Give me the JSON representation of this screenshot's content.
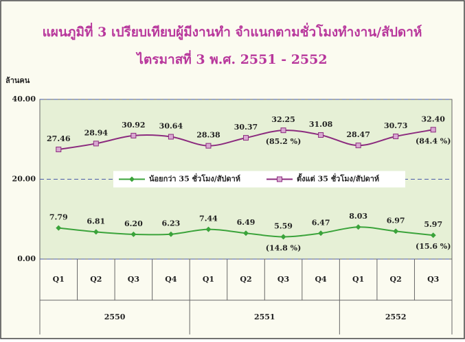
{
  "chart_data": {
    "type": "line",
    "title": "แผนภูมิที่ 3  เปรียบเทียบผู้มีงานทำ จำแนกตามชั่วโมงทำงาน/สัปดาห์",
    "subtitle": "ไตรมาสที่ 3  พ.ศ. 2551 - 2552",
    "y_label": "ล้านคน",
    "categories": [
      "Q1",
      "Q2",
      "Q3",
      "Q4",
      "Q1",
      "Q2",
      "Q3",
      "Q4",
      "Q1",
      "Q2",
      "Q3"
    ],
    "x_groups": [
      "2550",
      "2550",
      "2550",
      "2550",
      "2551",
      "2551",
      "2551",
      "2551",
      "2552",
      "2552",
      "2552"
    ],
    "ylim": [
      0,
      40
    ],
    "yticks": [
      {
        "value": 0,
        "label": "0.00"
      },
      {
        "value": 20,
        "label": "20.00"
      },
      {
        "value": 40,
        "label": "40.00"
      }
    ],
    "grid": true,
    "legend": "center",
    "series": [
      {
        "name": "น้อยกว่า 35 ชั่วโมง/สัปดาห์",
        "color": "#3aa33a",
        "marker": "diamond",
        "values": [
          7.79,
          6.81,
          6.2,
          6.23,
          7.44,
          6.49,
          5.59,
          6.47,
          8.03,
          6.97,
          5.97
        ],
        "value_labels": [
          "7.79",
          "6.81",
          "6.20",
          "6.23",
          "7.44",
          "6.49",
          "5.59",
          "6.47",
          "8.03",
          "6.97",
          "5.97"
        ],
        "annotations": [
          null,
          null,
          null,
          null,
          null,
          null,
          "(14.8 %)",
          null,
          null,
          null,
          "(15.6 %)"
        ]
      },
      {
        "name": "ตั้งแต่ 35 ชั่วโมง/สัปดาห์",
        "color": "#8b2a7e",
        "marker": "square",
        "values": [
          27.46,
          28.94,
          30.92,
          30.64,
          28.38,
          30.37,
          32.25,
          31.08,
          28.47,
          30.73,
          32.4
        ],
        "value_labels": [
          "27.46",
          "28.94",
          "30.92",
          "30.64",
          "28.38",
          "30.37",
          "32.25",
          "31.08",
          "28.47",
          "30.73",
          "32.40"
        ],
        "annotations": [
          null,
          null,
          null,
          null,
          null,
          null,
          "(85.2 %)",
          null,
          null,
          null,
          "(84.4 %)"
        ]
      }
    ]
  }
}
